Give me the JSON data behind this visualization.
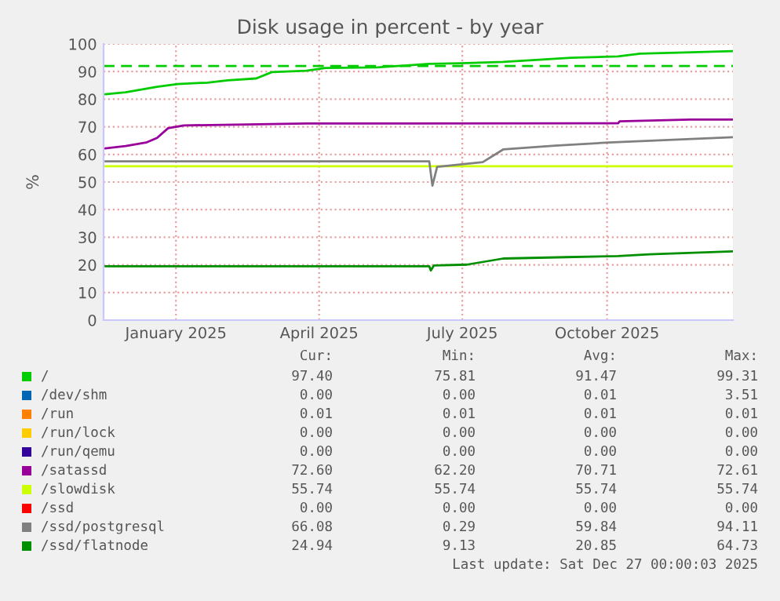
{
  "chart_data": {
    "type": "line",
    "title": "Disk usage in percent - by year",
    "ylabel": "%",
    "xlim": [
      "2024-11-22",
      "2025-12-27"
    ],
    "xticks": [
      {
        "value": "2025-01-07",
        "label": "January 2025"
      },
      {
        "value": "2025-04-08",
        "label": "April 2025"
      },
      {
        "value": "2025-07-08",
        "label": "July 2025"
      },
      {
        "value": "2025-10-08",
        "label": "October 2025"
      }
    ],
    "ylim": [
      0,
      100
    ],
    "yticks": [
      0,
      10,
      20,
      30,
      40,
      50,
      60,
      70,
      80,
      90,
      100
    ],
    "grid": true,
    "legend": "bottom",
    "ref_lines": [
      {
        "axis": "y",
        "value": 92,
        "color": "#00cc00",
        "line_style": "dashed"
      }
    ],
    "series": [
      {
        "name": "/",
        "color": "#00cc00",
        "x": [
          "2024-11-23",
          "2024-12-06",
          "2024-12-16",
          "2024-12-26",
          "2025-01-08",
          "2025-01-27",
          "2025-02-09",
          "2025-02-27",
          "2025-03-09",
          "2025-03-31",
          "2025-04-12",
          "2025-05-15",
          "2025-06-17",
          "2025-07-07",
          "2025-08-03",
          "2025-08-26",
          "2025-09-15",
          "2025-10-15",
          "2025-10-29",
          "2025-12-01",
          "2025-12-27"
        ],
        "values": [
          81.8,
          82.5,
          83.5,
          84.5,
          85.5,
          86,
          86.8,
          87.5,
          89.8,
          90.3,
          91.3,
          91.5,
          92.8,
          93,
          93.5,
          94.3,
          95,
          95.5,
          96.5,
          97,
          97.4
        ]
      },
      {
        "name": "/dev/shm",
        "color": "#0066b3"
      },
      {
        "name": "/run",
        "color": "#ff8000"
      },
      {
        "name": "/run/lock",
        "color": "#ffcc00"
      },
      {
        "name": "/run/qemu",
        "color": "#330099"
      },
      {
        "name": "/satassd",
        "color": "#990099",
        "x": [
          "2024-11-23",
          "2024-12-06",
          "2024-12-19",
          "2024-12-26",
          "2025-01-02",
          "2025-01-12",
          "2025-03-31",
          "2025-10-15",
          "2025-10-16",
          "2025-11-30",
          "2025-12-27"
        ],
        "values": [
          62.2,
          63,
          64.3,
          66,
          69.5,
          70.5,
          71.2,
          71.3,
          72,
          72.6,
          72.6
        ]
      },
      {
        "name": "/slowdisk",
        "color": "#ccff00",
        "x": [
          "2024-11-23",
          "2025-12-27"
        ],
        "values": [
          55.7,
          55.7
        ]
      },
      {
        "name": "/ssd",
        "color": "#ff0000"
      },
      {
        "name": "/ssd/postgresql",
        "color": "#808080",
        "x": [
          "2024-11-23",
          "2025-06-17",
          "2025-06-19",
          "2025-06-22",
          "2025-06-27",
          "2025-07-21",
          "2025-08-03",
          "2025-09-05",
          "2025-10-09",
          "2025-12-27"
        ],
        "values": [
          57.5,
          57.5,
          48.7,
          55.5,
          55.8,
          57.2,
          61.8,
          63.2,
          64.3,
          66.2
        ]
      },
      {
        "name": "/ssd/flatnode",
        "color": "#008f00",
        "x": [
          "2024-11-23",
          "2025-06-17",
          "2025-06-18",
          "2025-06-20",
          "2025-07-11",
          "2025-08-03",
          "2025-09-12",
          "2025-10-15",
          "2025-11-04",
          "2025-12-27"
        ],
        "values": [
          19.5,
          19.5,
          18,
          19.8,
          20.1,
          22.3,
          22.8,
          23.2,
          23.8,
          24.9
        ]
      }
    ],
    "annotations": [
      "Cur:",
      "Min:",
      "Avg:",
      "Max:",
      "97.40",
      "75.81",
      "91.47",
      "99.31",
      "0.00",
      "0.00",
      "0.01",
      "3.51",
      "0.01",
      "0.01",
      "0.01",
      "0.01",
      "0.00",
      "0.00",
      "0.00",
      "0.00",
      "0.00",
      "0.00",
      "0.00",
      "0.00",
      "72.60",
      "62.20",
      "70.71",
      "72.61",
      "55.74",
      "55.74",
      "55.74",
      "55.74",
      "0.00",
      "0.00",
      "0.00",
      "0.00",
      "66.08",
      "0.29",
      "59.84",
      "94.11",
      "24.94",
      "9.13",
      "20.85",
      "64.73",
      "Last update: Sat Dec 27 00:00:03 2025"
    ]
  }
}
